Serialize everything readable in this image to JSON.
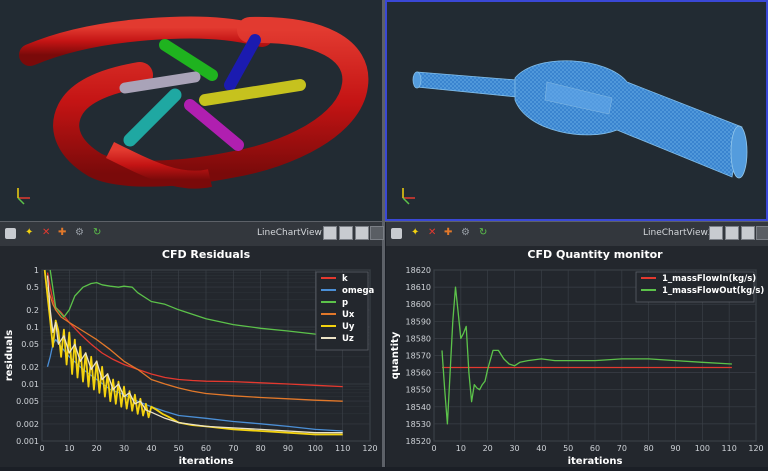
{
  "views": {
    "chart_view_1": {
      "title": "LineChartView1"
    },
    "chart_view_2": {
      "title": "LineChartView2"
    }
  },
  "toolbar_icons": [
    "camera-icon",
    "axes-icon",
    "delete-icon",
    "edit-icon",
    "settings-icon",
    "sync-icon"
  ],
  "colors": {
    "background": "#222b33",
    "toolbar": "#33373d",
    "chart_bg": "#23272d",
    "active_border": "#3a48d6",
    "pipe_red": "#c41414",
    "mesh_blue": "#4aa8ff"
  },
  "chart_data": [
    {
      "type": "line",
      "title": "CFD Residuals",
      "xlabel": "iterations",
      "ylabel": "residuals",
      "yscale": "log",
      "xlim": [
        0,
        120
      ],
      "ylim": [
        0.001,
        1
      ],
      "xticks": [
        0,
        10,
        20,
        30,
        40,
        50,
        60,
        70,
        80,
        90,
        100,
        110,
        120
      ],
      "yticks": [
        {
          "v": 1,
          "l": "1"
        },
        {
          "v": 0.5,
          "l": "0.5"
        },
        {
          "v": 0.2,
          "l": "0.2"
        },
        {
          "v": 0.1,
          "l": "0.1"
        },
        {
          "v": 0.05,
          "l": "0.05"
        },
        {
          "v": 0.02,
          "l": "0.02"
        },
        {
          "v": 0.01,
          "l": "0.01"
        },
        {
          "v": 0.005,
          "l": "0.005"
        },
        {
          "v": 0.002,
          "l": "0.002"
        },
        {
          "v": 0.001,
          "l": "0.001"
        }
      ],
      "legend": "top-right",
      "grid": true,
      "series": [
        {
          "name": "k",
          "color": "#e4392f",
          "x": [
            2,
            3,
            4,
            5,
            7,
            10,
            14,
            18,
            22,
            26,
            30,
            35,
            40,
            45,
            50,
            55,
            60,
            70,
            80,
            90,
            100,
            110
          ],
          "y": [
            0.9,
            0.5,
            0.3,
            0.22,
            0.18,
            0.12,
            0.075,
            0.05,
            0.035,
            0.027,
            0.022,
            0.018,
            0.015,
            0.013,
            0.012,
            0.0115,
            0.0112,
            0.011,
            0.0105,
            0.01,
            0.0095,
            0.009
          ]
        },
        {
          "name": "omega",
          "color": "#4b8fd6",
          "x": [
            2,
            3,
            4,
            5,
            7,
            10,
            15,
            20,
            25,
            30,
            35,
            40,
            45,
            50,
            60,
            70,
            80,
            90,
            100,
            110
          ],
          "y": [
            0.02,
            0.03,
            0.05,
            0.06,
            0.045,
            0.03,
            0.018,
            0.012,
            0.008,
            0.0065,
            0.005,
            0.004,
            0.0033,
            0.0028,
            0.0025,
            0.0022,
            0.002,
            0.0018,
            0.0016,
            0.0015
          ]
        },
        {
          "name": "p",
          "color": "#5cc24a",
          "x": [
            3,
            5,
            8,
            10,
            12,
            15,
            18,
            20,
            22,
            25,
            28,
            30,
            33,
            35,
            40,
            45,
            50,
            60,
            70,
            80,
            90,
            100,
            110
          ],
          "y": [
            1,
            0.22,
            0.15,
            0.2,
            0.35,
            0.5,
            0.58,
            0.6,
            0.55,
            0.52,
            0.5,
            0.52,
            0.5,
            0.4,
            0.28,
            0.25,
            0.2,
            0.14,
            0.11,
            0.095,
            0.085,
            0.075,
            0.07
          ]
        },
        {
          "name": "Ux",
          "color": "#e2782a",
          "x": [
            2,
            3,
            4,
            5,
            7,
            10,
            15,
            20,
            25,
            30,
            35,
            40,
            45,
            50,
            55,
            60,
            70,
            80,
            90,
            100,
            110
          ],
          "y": [
            0.5,
            0.35,
            0.25,
            0.2,
            0.15,
            0.12,
            0.085,
            0.06,
            0.04,
            0.025,
            0.018,
            0.012,
            0.01,
            0.0085,
            0.0075,
            0.0068,
            0.0062,
            0.0058,
            0.0055,
            0.0052,
            0.005
          ]
        },
        {
          "name": "Uy",
          "color": "#f3d20f",
          "x": [
            1,
            3,
            4,
            5,
            6,
            7,
            8,
            9,
            10,
            11,
            12,
            13,
            14,
            15,
            16,
            17,
            18,
            19,
            20,
            21,
            22,
            23,
            24,
            25,
            26,
            27,
            28,
            29,
            30,
            31,
            32,
            33,
            34,
            35,
            36,
            37,
            38,
            39,
            40,
            42,
            44,
            46,
            48,
            50,
            55,
            60,
            65,
            70,
            80,
            90,
            100,
            110
          ],
          "y": [
            1,
            0.13,
            0.045,
            0.13,
            0.085,
            0.03,
            0.09,
            0.022,
            0.08,
            0.015,
            0.06,
            0.013,
            0.045,
            0.011,
            0.035,
            0.009,
            0.03,
            0.008,
            0.025,
            0.007,
            0.02,
            0.006,
            0.015,
            0.005,
            0.012,
            0.0045,
            0.011,
            0.004,
            0.009,
            0.0037,
            0.0075,
            0.0034,
            0.0065,
            0.003,
            0.0055,
            0.0028,
            0.0045,
            0.0026,
            0.004,
            0.0035,
            0.003,
            0.0027,
            0.0024,
            0.0021,
            0.0019,
            0.0018,
            0.0017,
            0.0016,
            0.0015,
            0.0014,
            0.0013,
            0.0013
          ]
        },
        {
          "name": "Uz",
          "color": "#ece3c6",
          "x": [
            2,
            3,
            4,
            5,
            6,
            8,
            10,
            12,
            14,
            16,
            18,
            20,
            22,
            24,
            26,
            28,
            30,
            32,
            34,
            36,
            38,
            40,
            45,
            50,
            60,
            70,
            80,
            90,
            100,
            110
          ],
          "y": [
            0.8,
            0.2,
            0.08,
            0.12,
            0.05,
            0.07,
            0.035,
            0.05,
            0.025,
            0.035,
            0.018,
            0.025,
            0.012,
            0.015,
            0.008,
            0.01,
            0.006,
            0.007,
            0.0045,
            0.005,
            0.0035,
            0.0032,
            0.0025,
            0.0021,
            0.0018,
            0.0017,
            0.0016,
            0.0015,
            0.0014,
            0.0014
          ]
        }
      ]
    },
    {
      "type": "line",
      "title": "CFD Quantity monitor",
      "xlabel": "iterations",
      "ylabel": "quantity",
      "xlim": [
        0,
        120
      ],
      "ylim": [
        18520,
        18620
      ],
      "xticks": [
        0,
        10,
        20,
        30,
        40,
        50,
        60,
        70,
        80,
        90,
        100,
        110,
        120
      ],
      "yticks": [
        18520,
        18530,
        18540,
        18550,
        18560,
        18570,
        18580,
        18590,
        18600,
        18610,
        18620
      ],
      "legend": "top-right",
      "grid": true,
      "series": [
        {
          "name": "1_massFlowIn(kg/s)",
          "color": "#e4392f",
          "x": [
            3,
            111
          ],
          "y": [
            18563,
            18563
          ]
        },
        {
          "name": "1_massFlowOut(kg/s)",
          "color": "#5cc24a",
          "x": [
            3,
            4,
            5,
            6,
            7,
            8,
            9,
            10,
            11,
            12,
            13,
            14,
            15,
            16,
            17,
            18,
            19,
            20,
            22,
            24,
            26,
            28,
            30,
            32,
            35,
            40,
            45,
            50,
            60,
            70,
            80,
            90,
            100,
            111
          ],
          "y": [
            18573,
            18550,
            18530,
            18560,
            18590,
            18610,
            18595,
            18580,
            18583,
            18587,
            18560,
            18543,
            18553,
            18551,
            18550,
            18553,
            18555,
            18562,
            18573,
            18573,
            18568,
            18565,
            18564,
            18566,
            18567,
            18568,
            18567,
            18567,
            18567,
            18568,
            18568,
            18567,
            18566,
            18565
          ]
        }
      ]
    }
  ]
}
